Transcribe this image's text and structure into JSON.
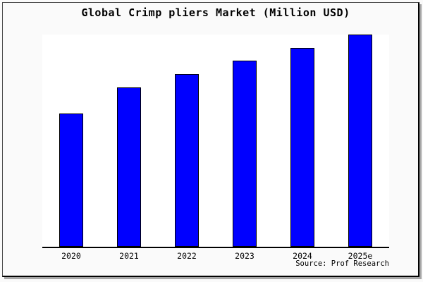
{
  "page": {
    "background_color": "#fafafa",
    "frame_border_color": "#000000",
    "frame_shadow_color": "#a6a6a6"
  },
  "header": {
    "title": "Global Crimp pliers Market (Million USD)"
  },
  "footer": {
    "source_note": "Source: Prof Research"
  },
  "chart_data": {
    "type": "bar",
    "title": "Global Crimp pliers Market (Million USD)",
    "categories": [
      "2020",
      "2021",
      "2022",
      "2023",
      "2024",
      "2025e"
    ],
    "values": [
      62.7,
      75.0,
      81.3,
      87.7,
      93.7,
      100.0
    ],
    "values_note": "Relative bar heights as % of tallest bar (2025e); chart shows no y-axis tick labels or numeric data labels",
    "xlabel": "",
    "ylabel": "",
    "y_axis_tick_labels_visible": false,
    "grid": false,
    "legend": null,
    "bar_color": "#0000ff",
    "bar_border_color": "#000000",
    "axis_line_color": "#000000",
    "plot_background": "#ffffff"
  }
}
